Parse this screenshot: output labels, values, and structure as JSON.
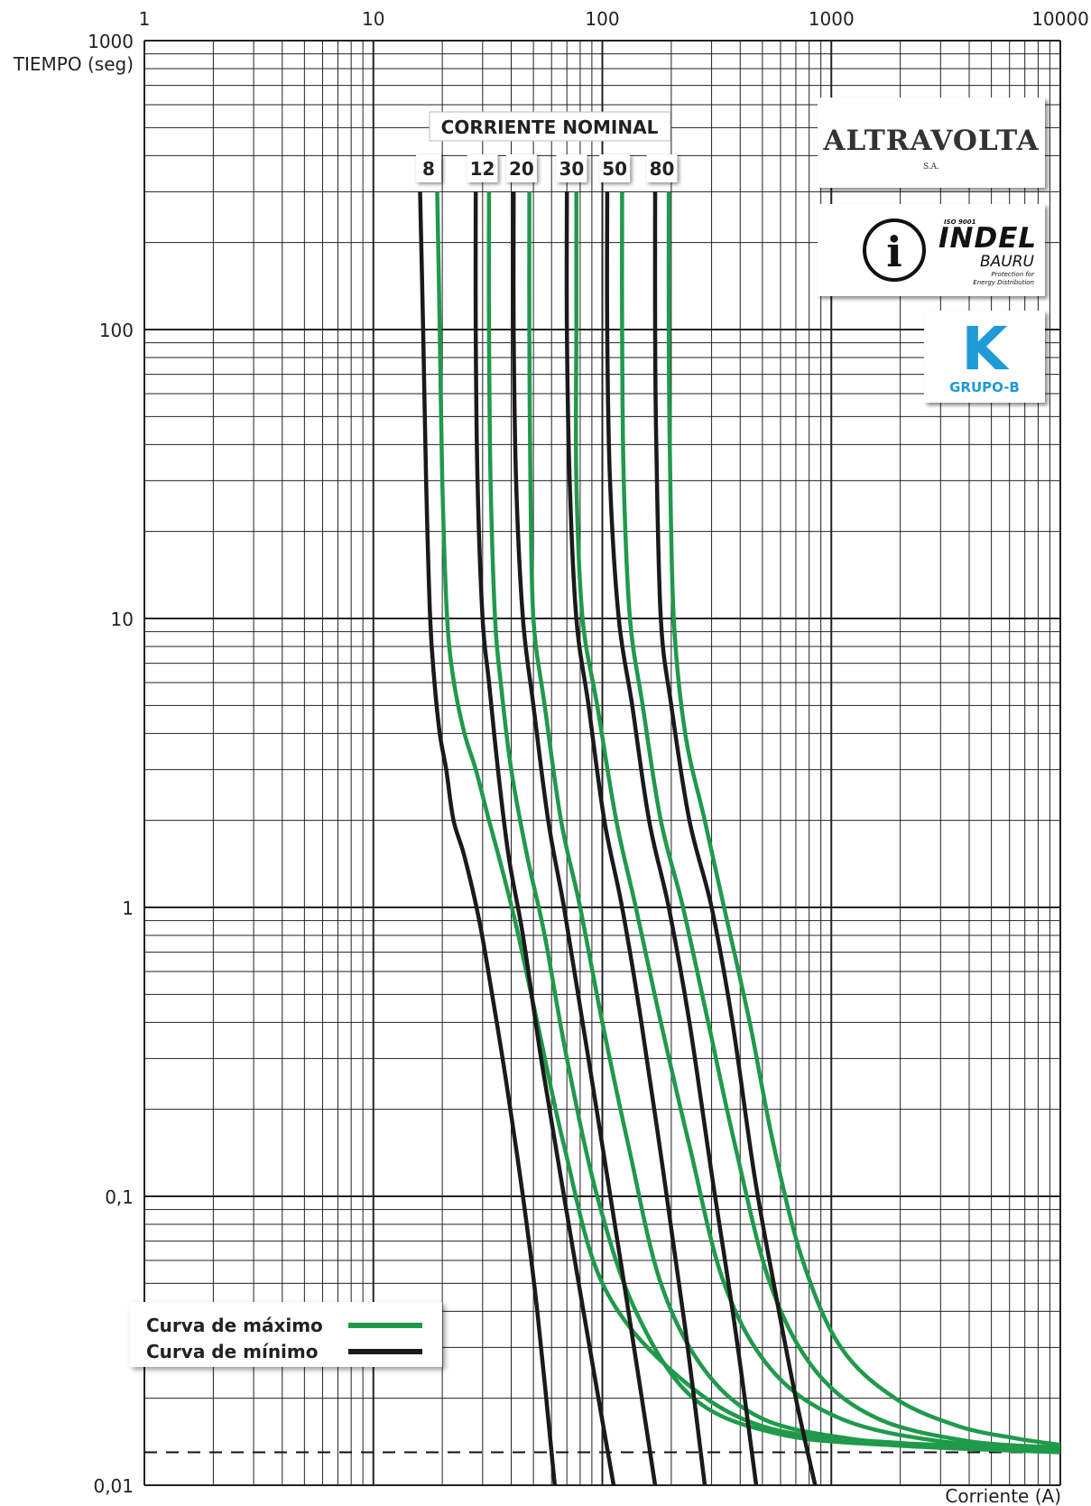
{
  "chart_data": {
    "type": "line",
    "xscale": "log",
    "yscale": "log",
    "xlim": [
      1,
      10000
    ],
    "ylim": [
      0.01,
      1000
    ],
    "xlabel": "Corriente (A)",
    "ylabel": "TIEMPO (seg)",
    "x_ticks": [
      "1",
      "10",
      "100",
      "1000",
      "10000"
    ],
    "y_ticks": [
      "0,01",
      "0,1",
      "1",
      "10",
      "100",
      "1000"
    ],
    "grid": true,
    "reference_line_y": 0.013,
    "group_label": "CORRIENTE NOMINAL",
    "ratings": [
      "8",
      "12",
      "20",
      "30",
      "50",
      "80"
    ],
    "legend": {
      "max_label": "Curva de máximo",
      "min_label": "Curva de mínimo",
      "placement": "bottom-left"
    },
    "colors": {
      "max": "#1f9a4a",
      "min": "#1a1a1a"
    },
    "series": [
      {
        "kind": "min",
        "rating": "8",
        "x": [
          16,
          16.5,
          17,
          17.7,
          18.5,
          19.5,
          20.8,
          22.4,
          25,
          29,
          33,
          38,
          45,
          52,
          62
        ],
        "y": [
          300,
          100,
          30,
          10,
          6,
          4,
          3,
          2,
          1.5,
          0.9,
          0.5,
          0.25,
          0.1,
          0.04,
          0.01
        ]
      },
      {
        "kind": "max",
        "rating": "8",
        "x": [
          19,
          19.5,
          20,
          21,
          22.5,
          25,
          28,
          32,
          37,
          43,
          52,
          68,
          100,
          200,
          500,
          2000,
          10000
        ],
        "y": [
          300,
          100,
          30,
          10,
          6,
          4,
          3,
          2,
          1.3,
          0.8,
          0.4,
          0.15,
          0.05,
          0.025,
          0.016,
          0.014,
          0.0135
        ]
      },
      {
        "kind": "min",
        "rating": "12",
        "x": [
          28,
          28,
          28.5,
          30,
          32,
          35,
          39,
          45,
          54,
          68,
          88,
          112
        ],
        "y": [
          300,
          100,
          30,
          10,
          6,
          3,
          1.5,
          0.8,
          0.3,
          0.1,
          0.03,
          0.01
        ]
      },
      {
        "kind": "max",
        "rating": "12",
        "x": [
          32,
          32,
          32.5,
          34,
          36,
          40,
          47,
          56,
          70,
          95,
          140,
          250,
          600,
          2000,
          10000
        ],
        "y": [
          300,
          100,
          30,
          10,
          6,
          3,
          1.5,
          0.8,
          0.3,
          0.1,
          0.04,
          0.02,
          0.015,
          0.0137,
          0.013
        ]
      },
      {
        "kind": "min",
        "rating": "20",
        "x": [
          41,
          41,
          42,
          45,
          50,
          58,
          68,
          82,
          100,
          130,
          170
        ],
        "y": [
          300,
          100,
          30,
          10,
          5,
          2,
          1,
          0.4,
          0.15,
          0.04,
          0.01
        ]
      },
      {
        "kind": "max",
        "rating": "20",
        "x": [
          48,
          48,
          48.5,
          50,
          56,
          66,
          80,
          100,
          130,
          180,
          280,
          500,
          1200,
          3000,
          10000
        ],
        "y": [
          300,
          100,
          30,
          10,
          5,
          2,
          1,
          0.4,
          0.15,
          0.05,
          0.025,
          0.017,
          0.0145,
          0.0136,
          0.0132
        ]
      },
      {
        "kind": "min",
        "rating": "30",
        "x": [
          70,
          70,
          72,
          77,
          87,
          102,
          122,
          148,
          185,
          230,
          280
        ],
        "y": [
          300,
          100,
          30,
          10,
          5,
          2,
          1,
          0.4,
          0.12,
          0.035,
          0.01
        ]
      },
      {
        "kind": "max",
        "rating": "30",
        "x": [
          77,
          77,
          77,
          82,
          95,
          115,
          140,
          180,
          240,
          340,
          550,
          1100,
          3000,
          10000
        ],
        "y": [
          300,
          100,
          30,
          10,
          5,
          2,
          1,
          0.4,
          0.15,
          0.05,
          0.025,
          0.017,
          0.0142,
          0.0134
        ]
      },
      {
        "kind": "min",
        "rating": "50",
        "x": [
          105,
          105,
          108,
          118,
          135,
          160,
          195,
          240,
          300,
          380,
          470
        ],
        "y": [
          300,
          100,
          30,
          10,
          5,
          2,
          1,
          0.4,
          0.12,
          0.035,
          0.01
        ]
      },
      {
        "kind": "max",
        "rating": "50",
        "x": [
          122,
          122,
          124,
          132,
          150,
          180,
          225,
          290,
          380,
          540,
          850,
          1600,
          4000,
          10000
        ],
        "y": [
          300,
          100,
          30,
          10,
          5,
          2,
          1,
          0.4,
          0.15,
          0.05,
          0.025,
          0.017,
          0.0142,
          0.0135
        ]
      },
      {
        "kind": "min",
        "rating": "80",
        "x": [
          170,
          170,
          172,
          180,
          200,
          240,
          300,
          370,
          460,
          560,
          700,
          850
        ],
        "y": [
          300,
          100,
          40,
          10,
          5,
          2,
          1,
          0.4,
          0.12,
          0.05,
          0.02,
          0.01
        ]
      },
      {
        "kind": "max",
        "rating": "80",
        "x": [
          195,
          195,
          197,
          205,
          230,
          280,
          340,
          440,
          560,
          750,
          1100,
          1900,
          3600,
          6500,
          10000
        ],
        "y": [
          300,
          100,
          40,
          10,
          4,
          2,
          1,
          0.4,
          0.15,
          0.06,
          0.03,
          0.02,
          0.016,
          0.0145,
          0.0138
        ]
      }
    ]
  },
  "logos": {
    "altravolta": {
      "name": "ALTRAVOLTA",
      "suffix": "S.A."
    },
    "indel": {
      "iso": "ISO 9001",
      "brand": "INDEL",
      "city": "BAURU",
      "tagline_1": "Protection for",
      "tagline_2": "Energy Distribution"
    },
    "k_badge": {
      "letter": "K",
      "group": "GRUPO-B"
    }
  }
}
